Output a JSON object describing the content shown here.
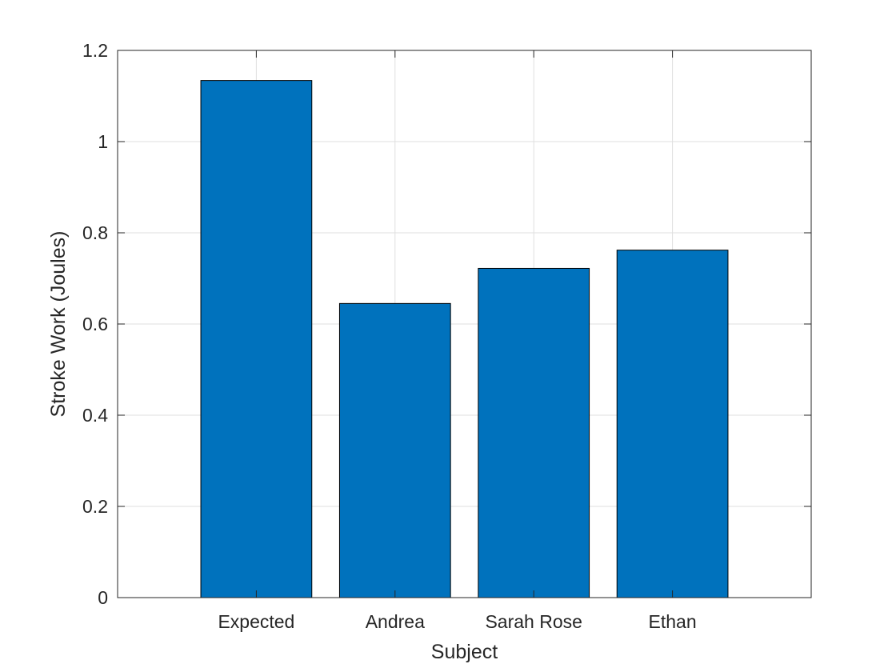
{
  "chart_data": {
    "type": "bar",
    "title": "",
    "xlabel": "Subject",
    "ylabel": "Stroke Work (Joules)",
    "categories": [
      "Expected",
      "Andrea",
      "Sarah Rose",
      "Ethan"
    ],
    "values": [
      1.134,
      0.645,
      0.722,
      0.762
    ],
    "ylim": [
      0,
      1.2
    ],
    "yticks": [
      "0",
      "0.2",
      "0.4",
      "0.6",
      "0.8",
      "1",
      "1.2"
    ],
    "grid": true,
    "bar_color": "#0072BD",
    "bar_edge_color": "#000000",
    "gridline_color": "#DFDFDF",
    "axis_color": "#262626"
  }
}
